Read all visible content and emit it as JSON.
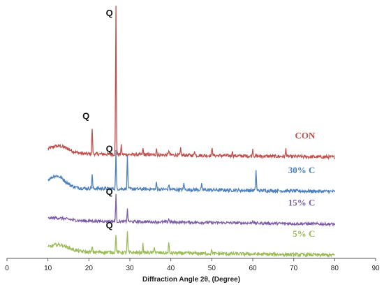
{
  "chart_data": {
    "type": "line",
    "xlabel": "Diffraction Angle 2θ, (Degree)",
    "ylabel": "",
    "xlim": [
      0,
      90
    ],
    "x_ticks": [
      0,
      10,
      20,
      30,
      40,
      50,
      60,
      70,
      80,
      90
    ],
    "grid": false,
    "legend": "none",
    "series": [
      {
        "name": "CON",
        "color": "#c0504d",
        "baseline": 3.0,
        "noise": 0.06,
        "hump": {
          "center": 12.5,
          "height": 0.22,
          "width": 3.5
        },
        "peaks": [
          [
            20.8,
            0.75
          ],
          [
            26.6,
            4.3
          ],
          [
            27.9,
            0.25
          ],
          [
            33.2,
            0.18
          ],
          [
            36.5,
            0.2
          ],
          [
            39.5,
            0.15
          ],
          [
            42.4,
            0.18
          ],
          [
            45.8,
            0.15
          ],
          [
            50.1,
            0.25
          ],
          [
            55.0,
            0.15
          ],
          [
            60.0,
            0.2
          ],
          [
            68.1,
            0.22
          ]
        ]
      },
      {
        "name": "30% C",
        "color": "#4f81bd",
        "baseline": 2.0,
        "noise": 0.06,
        "hump": {
          "center": 12.0,
          "height": 0.35,
          "width": 3.0
        },
        "peaks": [
          [
            20.8,
            0.4
          ],
          [
            26.6,
            1.1
          ],
          [
            29.4,
            0.95
          ],
          [
            36.5,
            0.2
          ],
          [
            39.5,
            0.15
          ],
          [
            43.2,
            0.2
          ],
          [
            47.5,
            0.15
          ],
          [
            60.8,
            0.6
          ]
        ]
      },
      {
        "name": "15% C",
        "color": "#7f5ea8",
        "baseline": 1.05,
        "noise": 0.05,
        "hump": {
          "center": 12.0,
          "height": 0.08,
          "width": 4.0
        },
        "peaks": [
          [
            26.6,
            0.8
          ],
          [
            29.4,
            0.35
          ],
          [
            39.5,
            0.1
          ],
          [
            60.0,
            0.1
          ]
        ]
      },
      {
        "name": "5% C",
        "color": "#9bbb59",
        "baseline": 0.15,
        "noise": 0.06,
        "hump": {
          "center": 12.5,
          "height": 0.2,
          "width": 3.5
        },
        "peaks": [
          [
            20.8,
            0.15
          ],
          [
            26.6,
            0.55
          ],
          [
            29.4,
            0.6
          ],
          [
            33.2,
            0.25
          ],
          [
            36.0,
            0.2
          ],
          [
            39.5,
            0.3
          ],
          [
            50.0,
            0.12
          ]
        ]
      }
    ],
    "ylim": [
      -0.05,
      7.3
    ],
    "annotations": [
      {
        "text": "Q",
        "x": 25.0,
        "y": 7.0
      },
      {
        "text": "Q",
        "x": 19.3,
        "y": 4.0
      },
      {
        "text": "Q",
        "x": 25.0,
        "y": 3.05
      },
      {
        "text": "Q",
        "x": 25.0,
        "y": 1.8
      },
      {
        "text": "Q",
        "x": 25.0,
        "y": 0.82
      }
    ]
  }
}
